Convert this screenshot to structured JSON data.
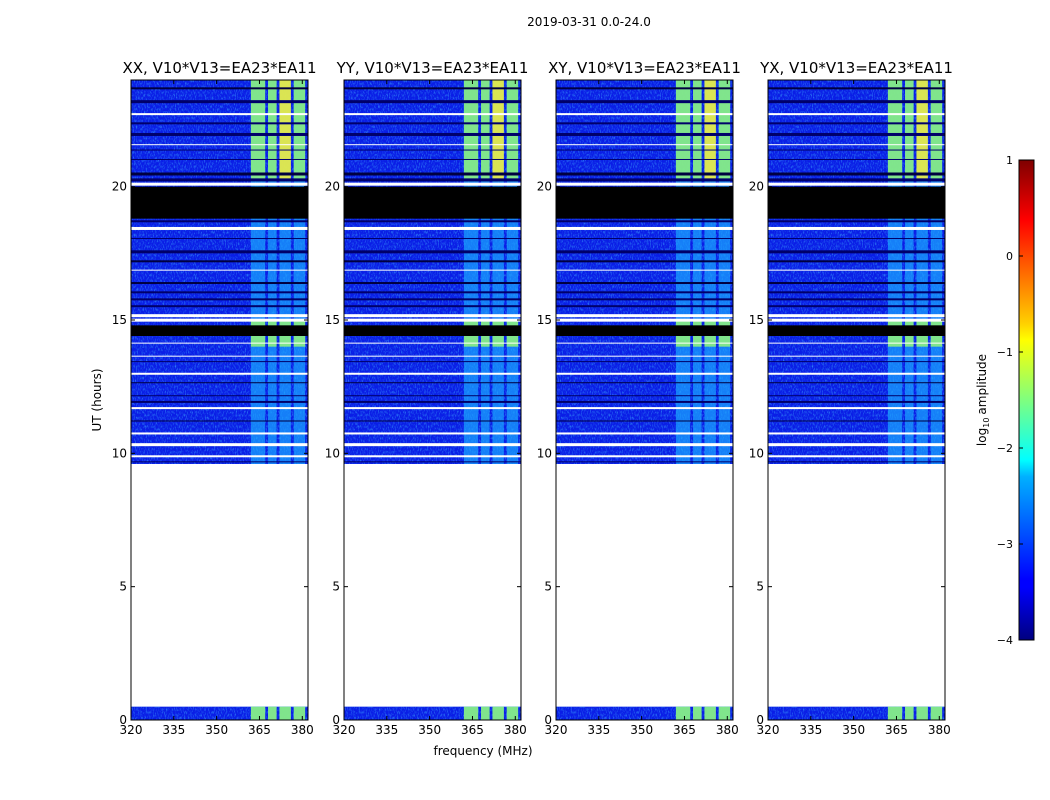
{
  "chart_data": {
    "type": "heatmap",
    "title": "2019-03-31 0.0-24.0",
    "xlabel": "frequency (MHz)",
    "ylabel": "UT (hours)",
    "xlim": [
      320,
      382
    ],
    "ylim": [
      0,
      24
    ],
    "xticks": [
      320,
      335,
      350,
      365,
      380
    ],
    "yticks": [
      0,
      5,
      10,
      15,
      20
    ],
    "panels": [
      {
        "title": "XX, V10*V13=EA23*EA11"
      },
      {
        "title": "YY, V10*V13=EA23*EA11"
      },
      {
        "title": "XY, V10*V13=EA23*EA11"
      },
      {
        "title": "YX, V10*V13=EA23*EA11"
      }
    ],
    "data_spans_hours": [
      [
        0,
        0.5
      ],
      [
        9.6,
        24.0
      ]
    ],
    "flagged_black_hours": [
      [
        18.8,
        20.0
      ],
      [
        14.4,
        14.8
      ]
    ],
    "gap_hours": [
      0.5,
      9.6
    ],
    "strong_rfi_channels_mhz": [
      [
        362,
        367
      ],
      [
        368,
        371
      ],
      [
        372,
        376
      ],
      [
        377,
        381
      ]
    ],
    "colorbar": {
      "label": "log10 amplitude",
      "label_base": "log",
      "label_sub": "10",
      "label_rest": "amplitude",
      "range": [
        -4,
        1
      ],
      "ticks": [
        "1",
        "0",
        "−1",
        "−2",
        "−3",
        "−4"
      ],
      "tick_values": [
        1,
        0,
        -1,
        -2,
        -3,
        -4
      ],
      "colormap": "jet"
    }
  }
}
